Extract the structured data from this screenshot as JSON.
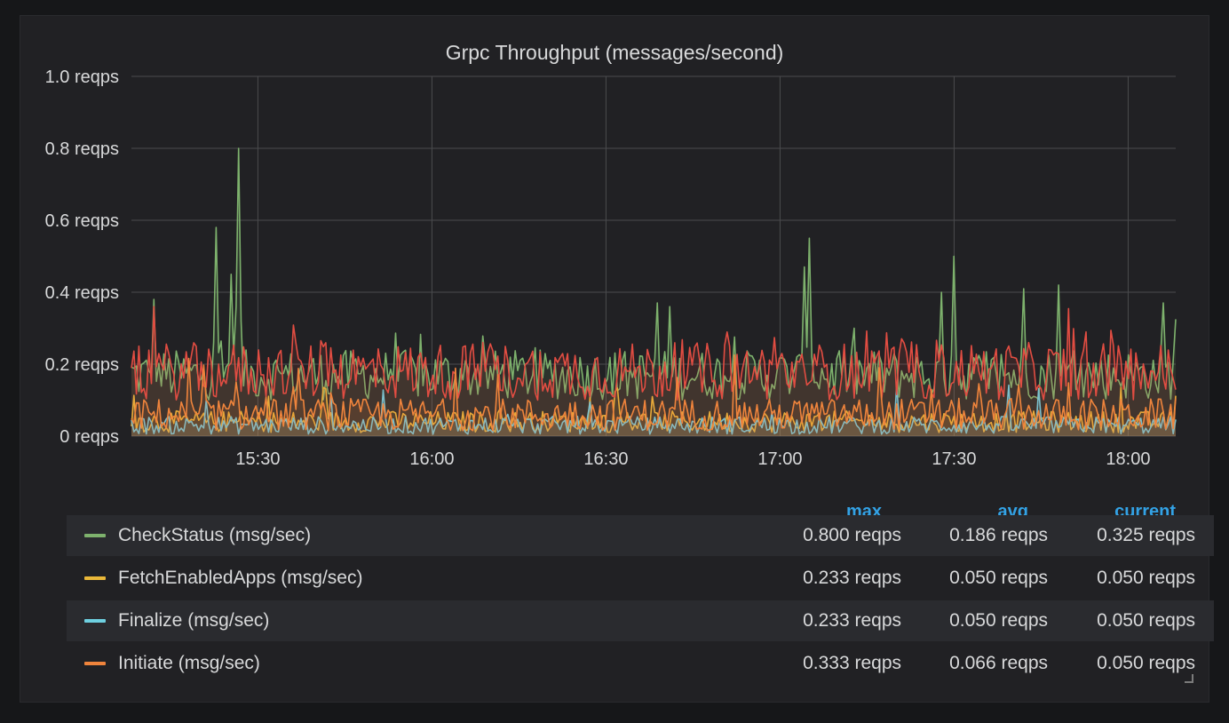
{
  "panel": {
    "title": "Grpc Throughput (messages/second)"
  },
  "chart_data": {
    "type": "line",
    "title": "Grpc Throughput (messages/second)",
    "ylim": [
      0,
      1.0
    ],
    "y_ticks": [
      "0 reqps",
      "0.2 reqps",
      "0.4 reqps",
      "0.6 reqps",
      "0.8 reqps",
      "1.0 reqps"
    ],
    "y_tick_values": [
      0,
      0.2,
      0.4,
      0.6,
      0.8,
      1.0
    ],
    "x_ticks": [
      "15:30",
      "16:00",
      "16:30",
      "17:00",
      "17:30",
      "18:00"
    ],
    "x_tick_values": [
      930,
      960,
      990,
      1020,
      1050,
      1080
    ],
    "xlim": [
      908.2,
      1088.2
    ],
    "grid": true,
    "series": [
      {
        "name": "CheckStatus (msg/sec)",
        "color": "#7eb26d",
        "max": 0.8,
        "avg": 0.186,
        "current": 0.325,
        "peaks": [
          [
            912,
            0.38
          ],
          [
            923,
            0.58
          ],
          [
            925.5,
            0.45
          ],
          [
            926.5,
            0.8
          ],
          [
            999,
            0.37
          ],
          [
            1001,
            0.36
          ],
          [
            1024,
            0.47
          ],
          [
            1025,
            0.55
          ],
          [
            1048,
            0.4
          ],
          [
            1050,
            0.5
          ],
          [
            1062,
            0.41
          ],
          [
            1068,
            0.42
          ],
          [
            1086,
            0.37
          ]
        ]
      },
      {
        "name": "FetchEnabledApps (msg/sec)",
        "color": "#eab839",
        "max": 0.233,
        "avg": 0.05,
        "current": 0.05
      },
      {
        "name": "Finalize (msg/sec)",
        "color": "#6ed0e0",
        "max": 0.233,
        "avg": 0.05,
        "current": 0.05
      },
      {
        "name": "Initiate (msg/sec)",
        "color": "#ef843c",
        "max": 0.333,
        "avg": 0.066,
        "current": 0.05
      },
      {
        "name": "",
        "color": "#e24d42",
        "max": null,
        "avg": null,
        "current": null
      }
    ]
  },
  "legend": {
    "headers": {
      "max": "max",
      "avg": "avg",
      "current": "current"
    },
    "rows": [
      {
        "name": "CheckStatus (msg/sec)",
        "color": "#7eb26d",
        "max": "0.800 reqps",
        "avg": "0.186 reqps",
        "current": "0.325 reqps"
      },
      {
        "name": "FetchEnabledApps (msg/sec)",
        "color": "#eab839",
        "max": "0.233 reqps",
        "avg": "0.050 reqps",
        "current": "0.050 reqps"
      },
      {
        "name": "Finalize (msg/sec)",
        "color": "#6ed0e0",
        "max": "0.233 reqps",
        "avg": "0.050 reqps",
        "current": "0.050 reqps"
      },
      {
        "name": "Initiate (msg/sec)",
        "color": "#ef843c",
        "max": "0.333 reqps",
        "avg": "0.066 reqps",
        "current": "0.050 reqps"
      }
    ]
  }
}
